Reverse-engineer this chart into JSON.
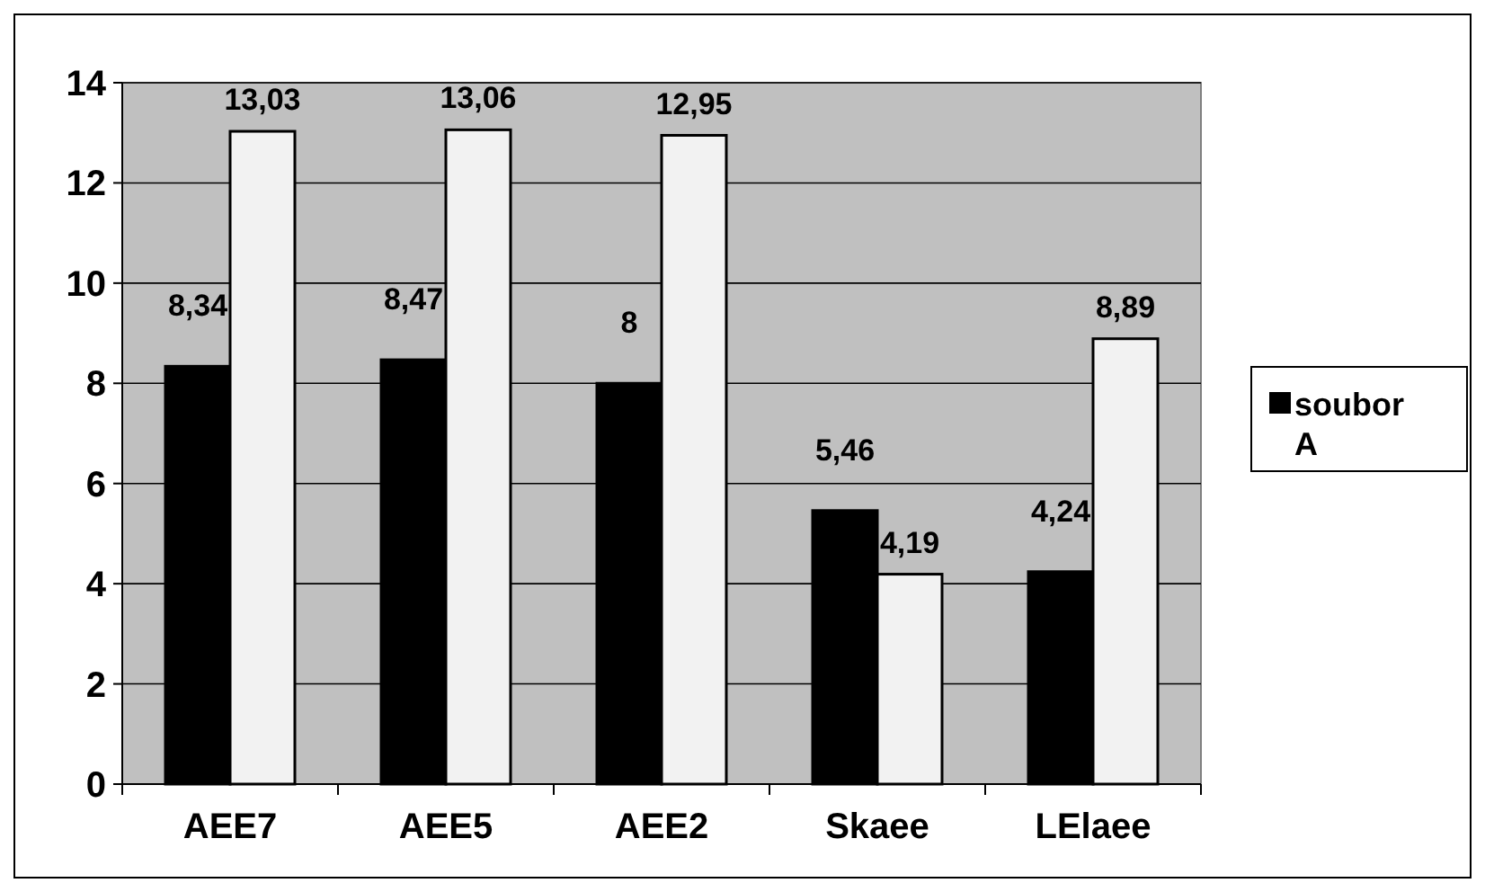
{
  "chart_data": {
    "type": "bar",
    "categories": [
      "AEE7",
      "AEE5",
      "AEE2",
      "Skaee",
      "LElaee"
    ],
    "series": [
      {
        "name": "soubor A",
        "color": "#000000",
        "values": [
          8.34,
          8.47,
          8,
          5.46,
          4.24
        ],
        "value_labels": [
          "8,34",
          "8,47",
          "8",
          "5,46",
          "4,24"
        ]
      },
      {
        "color": "#f2f2f2",
        "values": [
          13.03,
          13.06,
          12.95,
          4.19,
          8.89
        ],
        "value_labels": [
          "13,03",
          "13,06",
          "12,95",
          "4,19",
          "8,89"
        ]
      }
    ],
    "ylim": [
      0,
      14
    ],
    "yticks": [
      0,
      2,
      4,
      6,
      8,
      10,
      12,
      14
    ],
    "grid": "y",
    "legend": "right"
  }
}
